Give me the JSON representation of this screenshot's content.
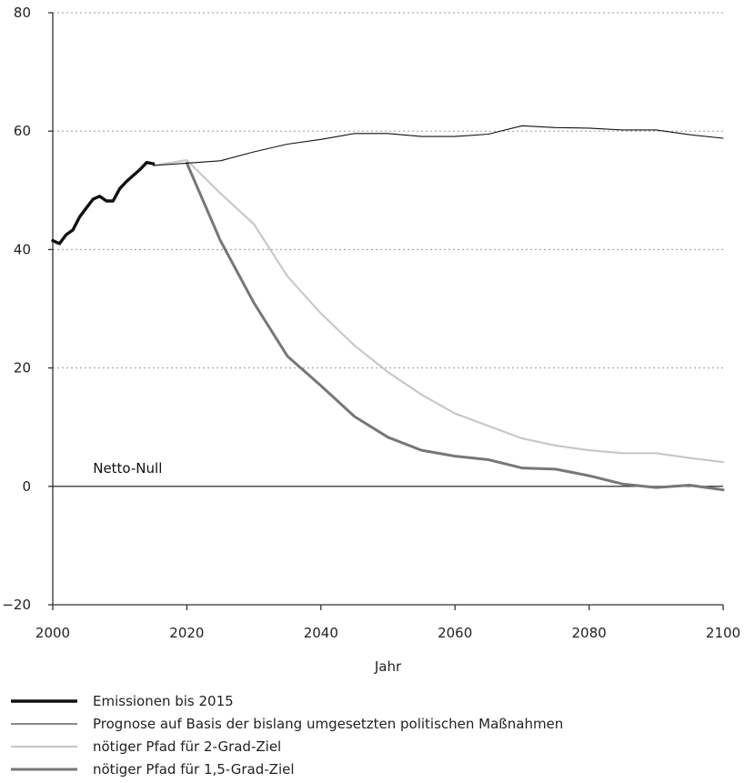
{
  "chart_data": {
    "type": "line",
    "xlabel": "Jahr",
    "ylabel": "",
    "xlim": [
      2000,
      2100
    ],
    "ylim": [
      -20,
      80
    ],
    "x_ticks": [
      2000,
      2020,
      2040,
      2060,
      2080,
      2100
    ],
    "y_ticks": [
      -20,
      0,
      20,
      40,
      60,
      80
    ],
    "grid": "horizontal dotted",
    "legend_position": "bottom",
    "annotations": [
      {
        "text": "Netto-Null",
        "x": 2006,
        "y": 2
      }
    ],
    "series": [
      {
        "name": "Emissionen bis 2015",
        "color": "#111111",
        "x": [
          2000,
          2001,
          2002,
          2003,
          2004,
          2005,
          2006,
          2007,
          2008,
          2009,
          2010,
          2011,
          2012,
          2013,
          2014,
          2015
        ],
        "values": [
          41.5,
          41.0,
          42.5,
          43.3,
          45.5,
          47.0,
          48.5,
          49.0,
          48.2,
          48.2,
          50.3,
          51.5,
          52.5,
          53.5,
          54.7,
          54.5
        ]
      },
      {
        "name": "Prognose auf Basis der bislang umgesetzten politischen Maßnahmen",
        "color": "#111111",
        "x": [
          2015,
          2020,
          2025,
          2030,
          2035,
          2040,
          2045,
          2050,
          2055,
          2060,
          2065,
          2070,
          2075,
          2080,
          2085,
          2090,
          2095,
          2100
        ],
        "values": [
          54.2,
          54.6,
          55.0,
          56.5,
          57.8,
          58.6,
          59.6,
          59.6,
          59.1,
          59.1,
          59.5,
          60.9,
          60.6,
          60.5,
          60.2,
          60.2,
          59.4,
          58.8
        ]
      },
      {
        "name": "nötiger Pfad für 2-Grad-Ziel",
        "color": "#c8c8c8",
        "x": [
          2015,
          2020,
          2025,
          2030,
          2035,
          2040,
          2045,
          2050,
          2055,
          2060,
          2065,
          2070,
          2075,
          2080,
          2085,
          2090,
          2095,
          2100
        ],
        "values": [
          54.2,
          55.1,
          49.5,
          44.3,
          35.5,
          29.2,
          23.8,
          19.3,
          15.5,
          12.3,
          10.2,
          8.1,
          6.9,
          6.1,
          5.6,
          5.6,
          4.8,
          4.1
        ]
      },
      {
        "name": "nötiger Pfad für 1,5-Grad-Ziel",
        "color": "#777777",
        "x": [
          2020,
          2025,
          2030,
          2035,
          2040,
          2045,
          2050,
          2055,
          2060,
          2065,
          2070,
          2075,
          2080,
          2085,
          2090,
          2095,
          2100
        ],
        "values": [
          54.6,
          41.5,
          31.0,
          22.0,
          17.0,
          11.8,
          8.3,
          6.1,
          5.1,
          4.5,
          3.1,
          2.9,
          1.8,
          0.4,
          -0.2,
          0.2,
          -0.6
        ]
      }
    ]
  }
}
